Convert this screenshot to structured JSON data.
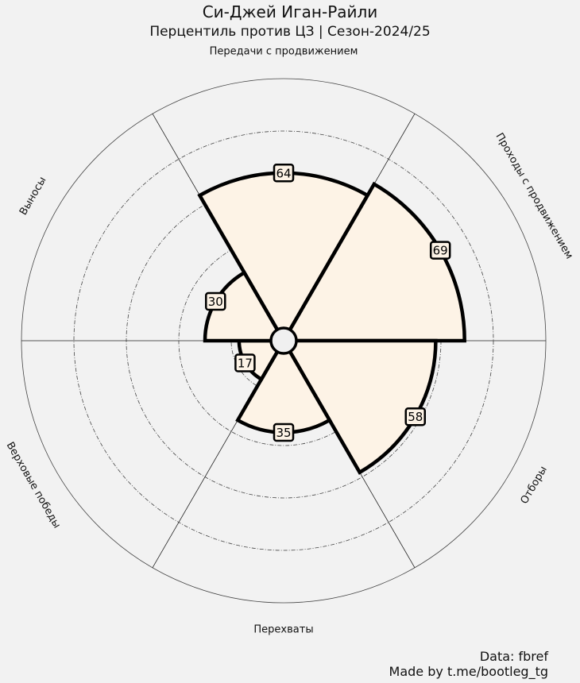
{
  "header": {
    "title": "Си-Джей Иган-Райли",
    "subtitle": "Перцентиль против ЦЗ | Сезон-2024/25"
  },
  "footer": {
    "source": "Data: fbref",
    "credit": "Made by t.me/bootleg_tg"
  },
  "chart_data": {
    "type": "polar-bar",
    "categories": [
      "Передачи с продвижением",
      "Проходы с продвижением",
      "Отборы",
      "Перехваты",
      "Верховые победы",
      "Выносы"
    ],
    "values": [
      64,
      69,
      58,
      35,
      17,
      30
    ],
    "rlim": [
      0,
      100
    ],
    "rings": [
      20,
      40,
      60,
      80
    ],
    "grid": true,
    "colors": {
      "background": "#f2f2f2",
      "slice_fill": "#fdf3e6",
      "slice_edge": "#000000",
      "grid": "#444444"
    }
  }
}
